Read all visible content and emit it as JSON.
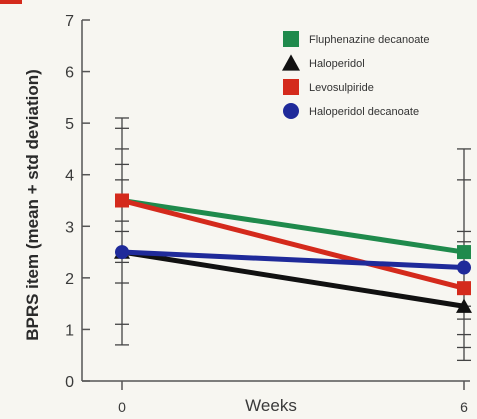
{
  "chart_data": {
    "type": "line",
    "title": "",
    "xlabel": "Weeks",
    "ylabel": "BPRS item (mean + std deviation)",
    "x": [
      0,
      6
    ],
    "x_tick_labels": [
      "0",
      "6"
    ],
    "ylim": [
      0,
      7
    ],
    "y_ticks": [
      0,
      1,
      2,
      3,
      4,
      5,
      6,
      7
    ],
    "grid": false,
    "legend_position": "top-right",
    "series": [
      {
        "name": "Fluphenazine decanoate",
        "color": "#1f8a4c",
        "marker": "square",
        "values": [
          3.5,
          2.5
        ]
      },
      {
        "name": "Haloperidol",
        "color": "#111111",
        "marker": "triangle",
        "values": [
          2.5,
          1.45
        ]
      },
      {
        "name": "Levosulpiride",
        "color": "#d42a1c",
        "marker": "square",
        "values": [
          3.5,
          1.8
        ]
      },
      {
        "name": "Haloperidol decanoate",
        "color": "#1f2a9a",
        "marker": "circle",
        "values": [
          2.5,
          2.2
        ]
      }
    ],
    "error_bar_ticks": {
      "x0": [
        0.7,
        1.1,
        1.9,
        2.3,
        2.5,
        2.9,
        3.1,
        3.5,
        3.9,
        4.2,
        4.5,
        4.9,
        5.1
      ],
      "x6": [
        0.4,
        0.65,
        0.9,
        1.2,
        1.45,
        1.8,
        2.2,
        2.5,
        2.7,
        2.9,
        3.9,
        4.5
      ]
    }
  }
}
